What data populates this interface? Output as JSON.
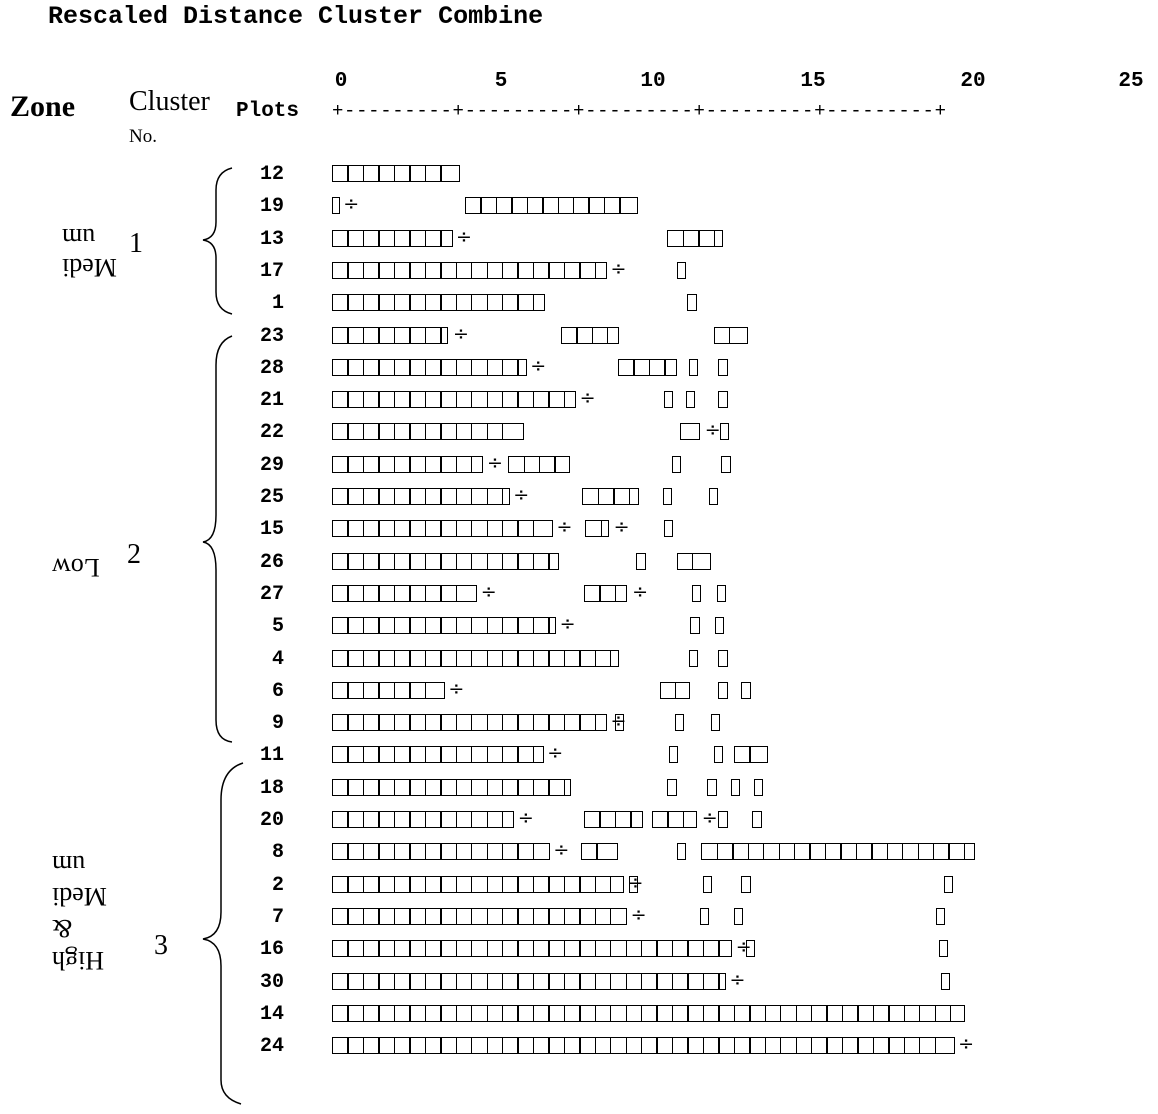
{
  "title": "Rescaled Distance Cluster Combine",
  "headers": {
    "zone": "Zone",
    "cluster": "Cluster",
    "cluster_no": "No.",
    "plots": "Plots"
  },
  "axis": {
    "ticks": [
      "0",
      "5",
      "10",
      "15",
      "20",
      "25"
    ],
    "rule": "+---------+---------+---------+---------+---------+"
  },
  "clusters": [
    {
      "number": "1",
      "zone_lines": [
        "Medi",
        "um"
      ]
    },
    {
      "number": "2",
      "zone_lines": [
        "Low"
      ]
    },
    {
      "number": "3",
      "zone_lines": [
        "High",
        "&",
        "Medi",
        "um"
      ]
    }
  ],
  "dendrogram_rows": [
    {
      "plot": "12",
      "segments": [
        [
          0,
          8.3
        ]
      ],
      "divides": []
    },
    {
      "plot": "19",
      "segments": [
        [
          0,
          0.5
        ],
        [
          8.6,
          19.8
        ]
      ],
      "divides": [
        0.6
      ]
    },
    {
      "plot": "13",
      "segments": [
        [
          0,
          7.8
        ],
        [
          21.7,
          25.3
        ]
      ],
      "divides": [
        7.9
      ]
    },
    {
      "plot": "17",
      "segments": [
        [
          0,
          17.8
        ],
        [
          22.3,
          22.9
        ]
      ],
      "divides": [
        17.9
      ]
    },
    {
      "plot": "1",
      "segments": [
        [
          0,
          13.8
        ],
        [
          23.0,
          23.6
        ]
      ],
      "divides": []
    },
    {
      "plot": "23",
      "segments": [
        [
          0,
          7.5
        ],
        [
          14.8,
          18.6
        ],
        [
          24.7,
          26.9
        ]
      ],
      "divides": [
        7.7
      ]
    },
    {
      "plot": "28",
      "segments": [
        [
          0,
          12.6
        ],
        [
          18.5,
          22.3
        ],
        [
          23.1,
          23.7
        ],
        [
          25.0,
          25.6
        ]
      ],
      "divides": [
        12.7
      ]
    },
    {
      "plot": "21",
      "segments": [
        [
          0,
          15.8
        ],
        [
          21.5,
          22.1
        ],
        [
          22.9,
          23.5
        ],
        [
          25.0,
          25.6
        ]
      ],
      "divides": [
        15.9
      ]
    },
    {
      "plot": "22",
      "segments": [
        [
          0,
          12.4
        ],
        [
          22.5,
          23.8
        ],
        [
          25.1,
          25.7
        ]
      ],
      "divides": [
        24.0
      ]
    },
    {
      "plot": "29",
      "segments": [
        [
          0,
          9.8
        ],
        [
          11.4,
          15.4
        ],
        [
          22.0,
          22.6
        ],
        [
          25.2,
          25.8
        ]
      ],
      "divides": [
        9.9
      ]
    },
    {
      "plot": "25",
      "segments": [
        [
          0,
          11.5
        ],
        [
          16.2,
          19.9
        ],
        [
          21.4,
          22.0
        ],
        [
          24.4,
          25.0
        ]
      ],
      "divides": [
        11.6
      ]
    },
    {
      "plot": "15",
      "segments": [
        [
          0,
          14.3
        ],
        [
          16.4,
          17.9
        ],
        [
          21.5,
          22.1
        ]
      ],
      "divides": [
        14.4,
        18.1
      ]
    },
    {
      "plot": "26",
      "segments": [
        [
          0,
          14.7
        ],
        [
          19.7,
          20.3
        ],
        [
          22.3,
          24.5
        ]
      ],
      "divides": []
    },
    {
      "plot": "27",
      "segments": [
        [
          0,
          9.4
        ],
        [
          16.3,
          19.1
        ],
        [
          23.3,
          23.9
        ],
        [
          24.9,
          25.5
        ]
      ],
      "divides": [
        9.5,
        19.3
      ]
    },
    {
      "plot": "5",
      "segments": [
        [
          0,
          14.5
        ],
        [
          23.2,
          23.8
        ],
        [
          24.8,
          25.4
        ]
      ],
      "divides": [
        14.6
      ]
    },
    {
      "plot": "4",
      "segments": [
        [
          0,
          18.6
        ],
        [
          23.1,
          23.7
        ],
        [
          25.0,
          25.6
        ]
      ],
      "divides": []
    },
    {
      "plot": "6",
      "segments": [
        [
          0,
          7.3
        ],
        [
          21.2,
          23.2
        ],
        [
          25.0,
          25.6
        ],
        [
          26.5,
          27.1
        ]
      ],
      "divides": [
        7.4
      ]
    },
    {
      "plot": "9",
      "segments": [
        [
          0,
          17.8
        ],
        [
          18.3,
          18.9
        ],
        [
          22.2,
          22.8
        ],
        [
          24.5,
          25.1
        ]
      ],
      "divides": [
        17.9
      ]
    },
    {
      "plot": "11",
      "segments": [
        [
          0,
          13.7
        ],
        [
          21.8,
          22.4
        ],
        [
          24.7,
          25.3
        ],
        [
          26.0,
          28.2
        ]
      ],
      "divides": [
        13.8
      ]
    },
    {
      "plot": "18",
      "segments": [
        [
          0,
          15.5
        ],
        [
          21.7,
          22.3
        ],
        [
          24.3,
          24.9
        ],
        [
          25.8,
          26.4
        ],
        [
          27.3,
          27.9
        ]
      ],
      "divides": []
    },
    {
      "plot": "20",
      "segments": [
        [
          0,
          11.8
        ],
        [
          16.3,
          20.1
        ],
        [
          20.7,
          23.6
        ],
        [
          25.0,
          25.6
        ],
        [
          27.2,
          27.8
        ]
      ],
      "divides": [
        11.9,
        23.8
      ]
    },
    {
      "plot": "8",
      "segments": [
        [
          0,
          14.1
        ],
        [
          16.1,
          18.5
        ],
        [
          22.3,
          22.9
        ],
        [
          23.9,
          41.6
        ]
      ],
      "divides": [
        14.2
      ]
    },
    {
      "plot": "2",
      "segments": [
        [
          0,
          18.9
        ],
        [
          19.2,
          19.8
        ],
        [
          24.0,
          24.6
        ],
        [
          26.5,
          27.1
        ],
        [
          39.6,
          40.2
        ]
      ],
      "divides": [
        19.0
      ]
    },
    {
      "plot": "7",
      "segments": [
        [
          0,
          19.1
        ],
        [
          23.8,
          24.4
        ],
        [
          26.0,
          26.6
        ],
        [
          39.1,
          39.7
        ]
      ],
      "divides": [
        19.2
      ]
    },
    {
      "plot": "16",
      "segments": [
        [
          0,
          25.9
        ],
        [
          26.8,
          27.4
        ],
        [
          39.3,
          39.9
        ]
      ],
      "divides": [
        26.0
      ]
    },
    {
      "plot": "30",
      "segments": [
        [
          0,
          25.5
        ],
        [
          39.4,
          40.0
        ]
      ],
      "divides": [
        25.6
      ]
    },
    {
      "plot": "14",
      "segments": [
        [
          0,
          41.0
        ]
      ],
      "divides": []
    },
    {
      "plot": "24",
      "segments": [
        [
          0,
          40.3
        ]
      ],
      "divides": [
        40.4
      ]
    }
  ],
  "colors": {
    "ink": "#000000",
    "background": "#ffffff"
  }
}
